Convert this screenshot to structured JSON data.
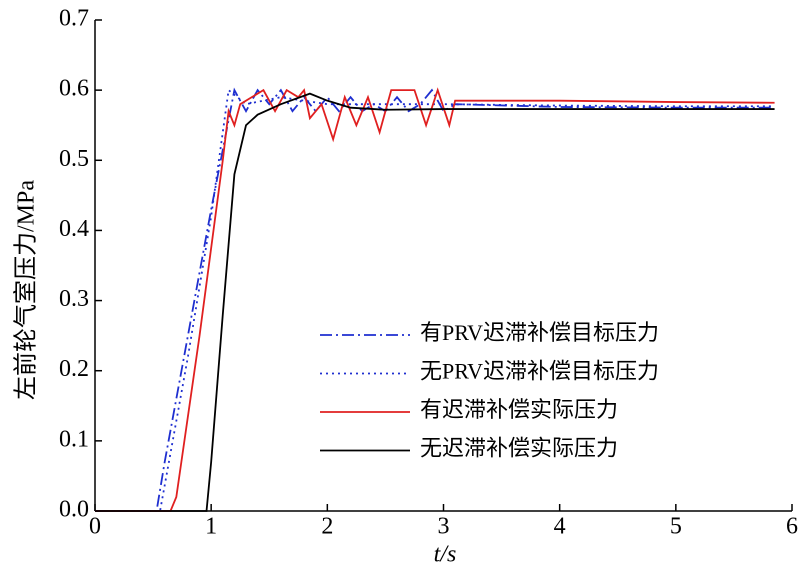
{
  "chart_data": {
    "type": "line",
    "xlabel": "t/s",
    "ylabel": "左前轮气室压力/MPa",
    "xlim": [
      0,
      6
    ],
    "xticks": [
      0,
      1,
      2,
      3,
      4,
      5,
      6
    ],
    "ylim": [
      0,
      0.7
    ],
    "yticks": [
      {
        "value": 0,
        "label": "0.0"
      },
      0.1,
      0.2,
      0.3,
      0.4,
      0.5,
      0.6,
      0.7
    ],
    "legend": "center right",
    "series": [
      {
        "name": "有PRV迟滞补偿目标压力",
        "color": "#1f2fd0",
        "line_style": "dashdot",
        "x": [
          0,
          0.53,
          0.6,
          0.8,
          1.0,
          1.2,
          1.3,
          1.4,
          1.5,
          1.6,
          1.7,
          1.8,
          1.9,
          2.0,
          2.1,
          2.2,
          2.3,
          2.4,
          2.5,
          2.6,
          2.7,
          2.8,
          2.9,
          3.0,
          3.1,
          4,
          5,
          5.85
        ],
        "values": [
          0,
          0,
          0.07,
          0.25,
          0.43,
          0.6,
          0.57,
          0.6,
          0.58,
          0.6,
          0.57,
          0.59,
          0.57,
          0.59,
          0.57,
          0.59,
          0.57,
          0.58,
          0.57,
          0.59,
          0.57,
          0.58,
          0.6,
          0.57,
          0.58,
          0.576,
          0.575,
          0.575
        ]
      },
      {
        "name": "无PRV迟滞补偿目标压力",
        "color": "#1f2fd0",
        "line_style": "dotted",
        "x": [
          0,
          0.56,
          0.8,
          1.0,
          1.15,
          1.3,
          1.6,
          2.0,
          3.0,
          4,
          5,
          5.85
        ],
        "values": [
          0,
          0,
          0.22,
          0.42,
          0.6,
          0.58,
          0.59,
          0.58,
          0.58,
          0.578,
          0.577,
          0.577
        ]
      },
      {
        "name": "有迟滞补偿实际压力",
        "color": "#e02020",
        "line_style": "solid",
        "x": [
          0,
          0.65,
          0.7,
          0.9,
          1.1,
          1.15,
          1.2,
          1.25,
          1.35,
          1.45,
          1.55,
          1.65,
          1.75,
          1.8,
          1.85,
          1.95,
          2.05,
          2.15,
          2.25,
          2.35,
          2.45,
          2.55,
          2.65,
          2.75,
          2.85,
          2.95,
          3.05,
          3.1,
          4,
          5,
          5.85
        ],
        "values": [
          0,
          0,
          0.02,
          0.25,
          0.5,
          0.57,
          0.55,
          0.58,
          0.59,
          0.6,
          0.57,
          0.6,
          0.59,
          0.6,
          0.56,
          0.58,
          0.53,
          0.59,
          0.55,
          0.59,
          0.54,
          0.6,
          0.6,
          0.6,
          0.55,
          0.6,
          0.55,
          0.585,
          0.585,
          0.583,
          0.582
        ]
      },
      {
        "name": "无迟滞补偿实际压力",
        "color": "#000000",
        "line_style": "solid",
        "x": [
          0,
          0.96,
          1.0,
          1.1,
          1.2,
          1.3,
          1.4,
          1.6,
          1.85,
          2.0,
          2.2,
          2.5,
          3,
          4,
          5,
          5.85
        ],
        "values": [
          0,
          0,
          0.07,
          0.28,
          0.48,
          0.55,
          0.565,
          0.58,
          0.595,
          0.585,
          0.575,
          0.572,
          0.573,
          0.573,
          0.573,
          0.573
        ]
      }
    ]
  }
}
